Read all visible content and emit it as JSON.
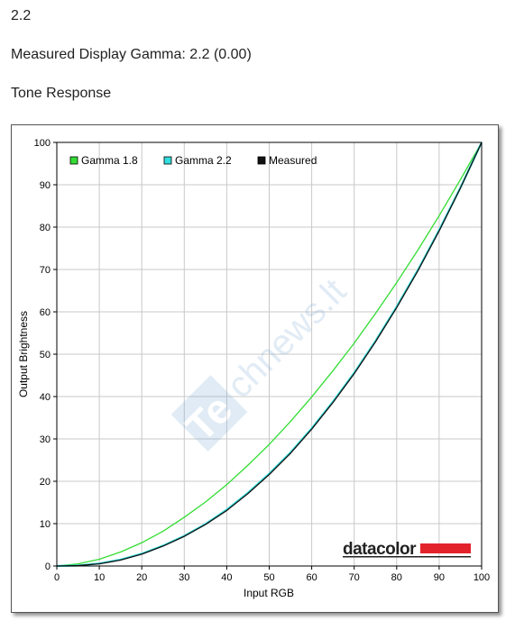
{
  "header": {
    "value": "2.2",
    "measured_gamma": "Measured Display Gamma: 2.2 (0.00)",
    "section_title": "Tone Response"
  },
  "chart_data": {
    "type": "line",
    "xlabel": "Input RGB",
    "ylabel": "Output Brightness",
    "xlim": [
      0,
      100
    ],
    "ylim": [
      0,
      100
    ],
    "xticks": [
      0,
      10,
      20,
      30,
      40,
      50,
      60,
      70,
      80,
      90,
      100
    ],
    "yticks": [
      0,
      10,
      20,
      30,
      40,
      50,
      60,
      70,
      80,
      90,
      100
    ],
    "grid": true,
    "legend_position": "top-left",
    "x": [
      0,
      5,
      10,
      15,
      20,
      25,
      30,
      35,
      40,
      45,
      50,
      55,
      60,
      65,
      70,
      75,
      80,
      85,
      90,
      95,
      100
    ],
    "series": [
      {
        "name": "Gamma 1.8",
        "color": "#33dd33",
        "values": [
          0,
          0.5,
          1.6,
          3.3,
          5.5,
          8.2,
          11.5,
          15.1,
          19.2,
          23.8,
          28.7,
          34.1,
          39.9,
          46.1,
          52.6,
          59.6,
          66.9,
          74.6,
          82.7,
          91.2,
          100
        ]
      },
      {
        "name": "Gamma 2.2",
        "color": "#33dddd",
        "values": [
          0,
          0.1,
          0.6,
          1.5,
          2.9,
          4.8,
          7.1,
          9.9,
          13.3,
          17.3,
          21.8,
          26.8,
          32.5,
          38.8,
          45.6,
          53.1,
          61.2,
          69.9,
          79.3,
          89.3,
          100
        ]
      },
      {
        "name": "Measured",
        "color": "#111111",
        "values": [
          0,
          0.1,
          0.5,
          1.4,
          2.8,
          4.7,
          7.0,
          9.8,
          13.1,
          17.1,
          21.6,
          26.6,
          32.3,
          38.6,
          45.4,
          52.9,
          61.0,
          69.7,
          79.1,
          89.2,
          100
        ]
      }
    ]
  },
  "watermark": {
    "prefix": "Te",
    "rest": "chnews.lt"
  },
  "logo": {
    "text": "datacolor",
    "bar_color": "#e3232c"
  }
}
